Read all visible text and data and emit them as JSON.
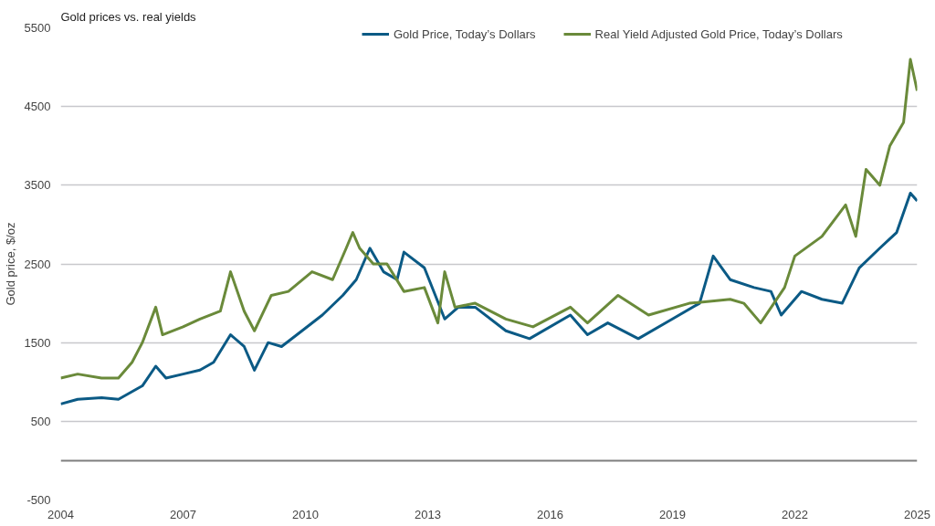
{
  "chart_data": {
    "type": "line",
    "title": "Gold prices vs. real yields",
    "ylabel": "Gold price, $/oz",
    "xlim": [
      "2004",
      "2025"
    ],
    "xticks": [
      "2004",
      "2007",
      "2010",
      "2013",
      "2016",
      "2019",
      "2022",
      "2025"
    ],
    "ylim": [
      -500,
      5500
    ],
    "yticks": [
      -500,
      500,
      1500,
      2500,
      3500,
      4500,
      5500
    ],
    "grid": "y",
    "legend": "top right",
    "ref_lines": [
      {
        "axis": "y",
        "value": 0,
        "color": "#7f7f7f"
      }
    ],
    "series": [
      {
        "name": "Gold Price, Today’s Dollars",
        "color": "#0b5a85",
        "x": [
          "2004-01",
          "2004-06",
          "2005-01",
          "2005-06",
          "2006-01",
          "2006-05",
          "2006-08",
          "2007-01",
          "2007-06",
          "2007-10",
          "2008-03",
          "2008-07",
          "2008-10",
          "2009-02",
          "2009-06",
          "2009-12",
          "2010-06",
          "2010-12",
          "2011-04",
          "2011-08",
          "2011-12",
          "2012-04",
          "2012-06",
          "2012-12",
          "2013-06",
          "2013-10",
          "2014-03",
          "2014-12",
          "2015-07",
          "2016-07",
          "2016-12",
          "2017-06",
          "2018-03",
          "2019-01",
          "2019-09",
          "2020-01",
          "2020-06",
          "2021-01",
          "2021-06",
          "2021-09",
          "2022-03",
          "2022-09",
          "2023-03",
          "2023-08",
          "2024-02",
          "2024-07",
          "2024-11",
          "2025-01"
        ],
        "values": [
          720,
          780,
          800,
          780,
          950,
          1200,
          1050,
          1100,
          1150,
          1250,
          1600,
          1450,
          1150,
          1500,
          1450,
          1650,
          1850,
          2100,
          2300,
          2700,
          2400,
          2300,
          2650,
          2450,
          1800,
          1950,
          1950,
          1650,
          1550,
          1850,
          1600,
          1750,
          1550,
          1800,
          2000,
          2600,
          2300,
          2200,
          2150,
          1850,
          2150,
          2050,
          2000,
          2450,
          2700,
          2900,
          3400,
          3300
        ]
      },
      {
        "name": "Real Yield Adjusted Gold Price, Today’s Dollars",
        "color": "#6a8a3a",
        "x": [
          "2004-01",
          "2004-06",
          "2005-01",
          "2005-06",
          "2005-10",
          "2006-01",
          "2006-05",
          "2006-07",
          "2007-01",
          "2007-06",
          "2007-12",
          "2008-03",
          "2008-07",
          "2008-10",
          "2009-03",
          "2009-08",
          "2010-03",
          "2010-09",
          "2011-01",
          "2011-03",
          "2011-05",
          "2011-09",
          "2012-01",
          "2012-06",
          "2012-12",
          "2013-04",
          "2013-06",
          "2013-09",
          "2014-03",
          "2014-12",
          "2015-08",
          "2016-07",
          "2016-12",
          "2017-09",
          "2018-06",
          "2019-06",
          "2020-06",
          "2020-10",
          "2021-03",
          "2021-10",
          "2022-01",
          "2022-09",
          "2023-04",
          "2023-07",
          "2023-10",
          "2024-02",
          "2024-05",
          "2024-09",
          "2024-11",
          "2025-01"
        ],
        "values": [
          1050,
          1100,
          1050,
          1050,
          1250,
          1500,
          1950,
          1600,
          1700,
          1800,
          1900,
          2400,
          1900,
          1650,
          2100,
          2150,
          2400,
          2300,
          2700,
          2900,
          2700,
          2500,
          2500,
          2150,
          2200,
          1750,
          2400,
          1950,
          2000,
          1800,
          1700,
          1950,
          1750,
          2100,
          1850,
          2000,
          2050,
          2000,
          1750,
          2200,
          2600,
          2850,
          3250,
          2850,
          3700,
          3500,
          4000,
          4300,
          5100,
          4700
        ]
      }
    ]
  }
}
